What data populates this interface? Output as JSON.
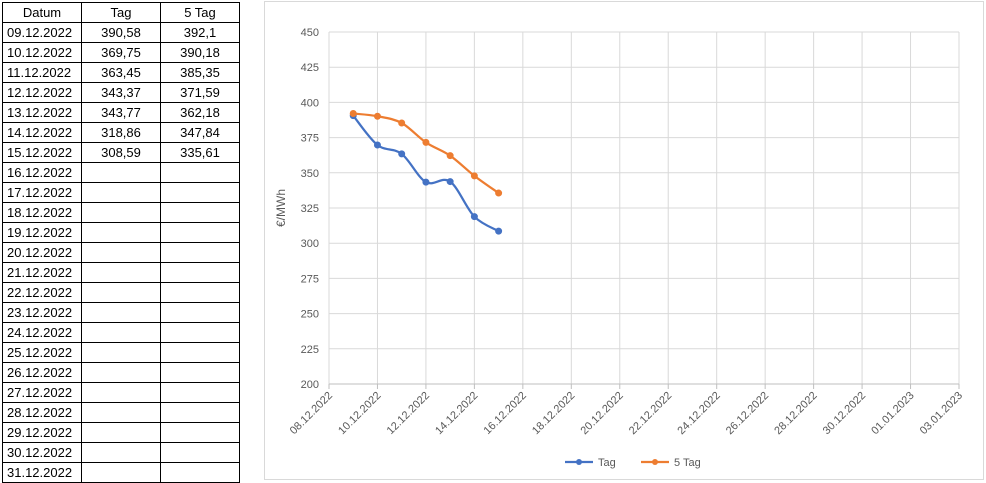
{
  "table": {
    "headers": [
      "Datum",
      "Tag",
      "5 Tag"
    ],
    "rows": [
      [
        "09.12.2022",
        "390,58",
        "392,1"
      ],
      [
        "10.12.2022",
        "369,75",
        "390,18"
      ],
      [
        "11.12.2022",
        "363,45",
        "385,35"
      ],
      [
        "12.12.2022",
        "343,37",
        "371,59"
      ],
      [
        "13.12.2022",
        "343,77",
        "362,18"
      ],
      [
        "14.12.2022",
        "318,86",
        "347,84"
      ],
      [
        "15.12.2022",
        "308,59",
        "335,61"
      ],
      [
        "16.12.2022",
        "",
        ""
      ],
      [
        "17.12.2022",
        "",
        ""
      ],
      [
        "18.12.2022",
        "",
        ""
      ],
      [
        "19.12.2022",
        "",
        ""
      ],
      [
        "20.12.2022",
        "",
        ""
      ],
      [
        "21.12.2022",
        "",
        ""
      ],
      [
        "22.12.2022",
        "",
        ""
      ],
      [
        "23.12.2022",
        "",
        ""
      ],
      [
        "24.12.2022",
        "",
        ""
      ],
      [
        "25.12.2022",
        "",
        ""
      ],
      [
        "26.12.2022",
        "",
        ""
      ],
      [
        "27.12.2022",
        "",
        ""
      ],
      [
        "28.12.2022",
        "",
        ""
      ],
      [
        "29.12.2022",
        "",
        ""
      ],
      [
        "30.12.2022",
        "",
        ""
      ],
      [
        "31.12.2022",
        "",
        ""
      ]
    ]
  },
  "chart_data": {
    "type": "line",
    "title": "",
    "xlabel": "",
    "ylabel": "€/MWh",
    "ylim": [
      200,
      450
    ],
    "yticks": [
      200,
      225,
      250,
      275,
      300,
      325,
      350,
      375,
      400,
      425,
      450
    ],
    "xlim": [
      "08.12.2022",
      "03.01.2023"
    ],
    "xticks": [
      "08.12.2022",
      "10.12.2022",
      "12.12.2022",
      "14.12.2022",
      "16.12.2022",
      "18.12.2022",
      "20.12.2022",
      "22.12.2022",
      "24.12.2022",
      "26.12.2022",
      "28.12.2022",
      "30.12.2022",
      "01.01.2023",
      "03.01.2023"
    ],
    "grid": true,
    "legend_position": "bottom",
    "x": [
      "09.12.2022",
      "10.12.2022",
      "11.12.2022",
      "12.12.2022",
      "13.12.2022",
      "14.12.2022",
      "15.12.2022"
    ],
    "series": [
      {
        "name": "Tag",
        "color": "#4472C4",
        "values": [
          390.58,
          369.75,
          363.45,
          343.37,
          343.77,
          318.86,
          308.59
        ]
      },
      {
        "name": "5 Tag",
        "color": "#ED7D31",
        "values": [
          392.1,
          390.18,
          385.35,
          371.59,
          362.18,
          347.84,
          335.61
        ]
      }
    ]
  }
}
